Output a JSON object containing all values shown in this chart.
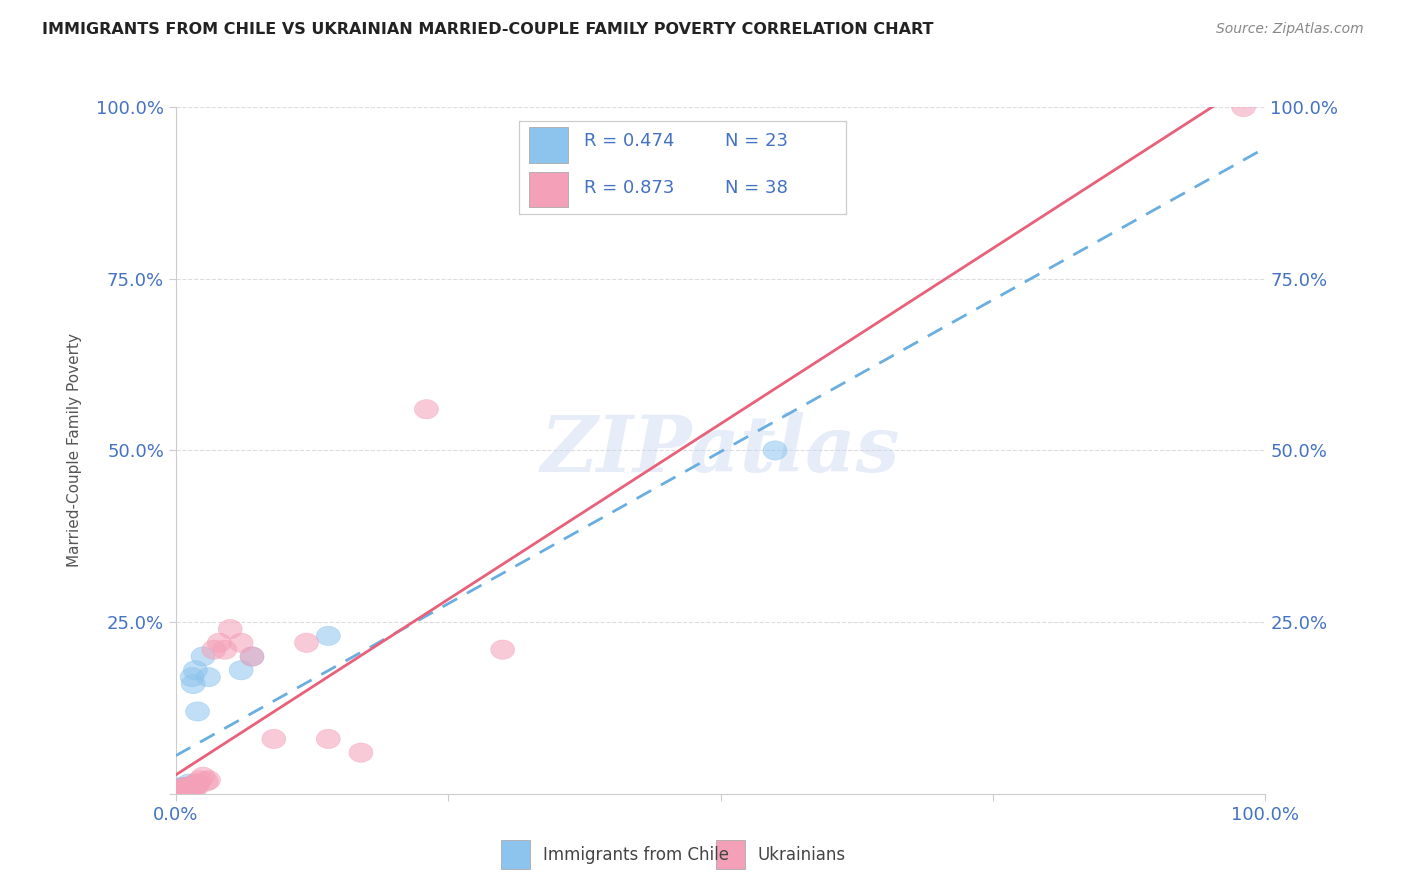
{
  "title": "IMMIGRANTS FROM CHILE VS UKRAINIAN MARRIED-COUPLE FAMILY POVERTY CORRELATION CHART",
  "source": "Source: ZipAtlas.com",
  "ylabel": "Married-Couple Family Poverty",
  "xlim": [
    0,
    1
  ],
  "ylim": [
    0,
    1
  ],
  "watermark": "ZIPatlas",
  "chile_color": "#8DC4ED",
  "ukraine_color": "#F4A0B8",
  "chile_line_color": "#6AAEE0",
  "ukraine_line_color": "#E8607A",
  "chile_R": 0.474,
  "chile_N": 23,
  "ukraine_R": 0.873,
  "ukraine_N": 38,
  "chile_scatter_x": [
    0.002,
    0.003,
    0.004,
    0.005,
    0.005,
    0.006,
    0.007,
    0.008,
    0.009,
    0.01,
    0.011,
    0.012,
    0.013,
    0.015,
    0.016,
    0.018,
    0.02,
    0.025,
    0.03,
    0.06,
    0.07,
    0.14,
    0.55
  ],
  "chile_scatter_y": [
    0.005,
    0.008,
    0.003,
    0.01,
    0.005,
    0.004,
    0.007,
    0.01,
    0.003,
    0.006,
    0.008,
    0.015,
    0.005,
    0.17,
    0.16,
    0.18,
    0.12,
    0.2,
    0.17,
    0.18,
    0.2,
    0.23,
    0.5
  ],
  "ukraine_scatter_x": [
    0.001,
    0.002,
    0.003,
    0.004,
    0.005,
    0.005,
    0.006,
    0.007,
    0.008,
    0.009,
    0.01,
    0.011,
    0.012,
    0.013,
    0.014,
    0.015,
    0.016,
    0.017,
    0.018,
    0.019,
    0.02,
    0.022,
    0.025,
    0.028,
    0.03,
    0.035,
    0.04,
    0.045,
    0.05,
    0.06,
    0.07,
    0.09,
    0.12,
    0.14,
    0.17,
    0.23,
    0.3,
    0.98
  ],
  "ukraine_scatter_y": [
    0.003,
    0.005,
    0.004,
    0.006,
    0.004,
    0.008,
    0.005,
    0.007,
    0.01,
    0.005,
    0.008,
    0.006,
    0.01,
    0.007,
    0.012,
    0.009,
    0.007,
    0.01,
    0.015,
    0.01,
    0.015,
    0.02,
    0.025,
    0.018,
    0.02,
    0.21,
    0.22,
    0.21,
    0.24,
    0.22,
    0.2,
    0.08,
    0.22,
    0.08,
    0.06,
    0.56,
    0.21,
    1.0
  ],
  "background_color": "#ffffff",
  "grid_color": "#dddddd",
  "axis_color": "#cccccc",
  "tick_color": "#4472c4"
}
